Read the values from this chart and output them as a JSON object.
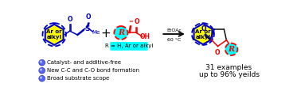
{
  "bg_color": "#ffffff",
  "fig_width": 3.78,
  "fig_height": 1.34,
  "dpi": 100,
  "ylide_label": "Ar or\nalkyl",
  "ylide_bg": "#ffff00",
  "ylide_border": "#0000cc",
  "R_label": "R",
  "R_bg": "#00ffff",
  "R_border": "#ff0000",
  "plus_text": "+",
  "arrow_text": "EtOAc\n60 °C",
  "r_def_text": "R = H, Ar or alkyl",
  "r_def_bg": "#00ffff",
  "bullet_color": "#3333cc",
  "bullet_texts": [
    "Catalyst- and additive-free",
    "New C-C and C-O bond formation",
    "Broad substrate scope"
  ],
  "result_line1": "31 examples",
  "result_line2": "up to 96% yeilds",
  "bond_color_blue": "#0000bb",
  "bond_color_red": "#ee0000",
  "bond_color_black": "#111111"
}
